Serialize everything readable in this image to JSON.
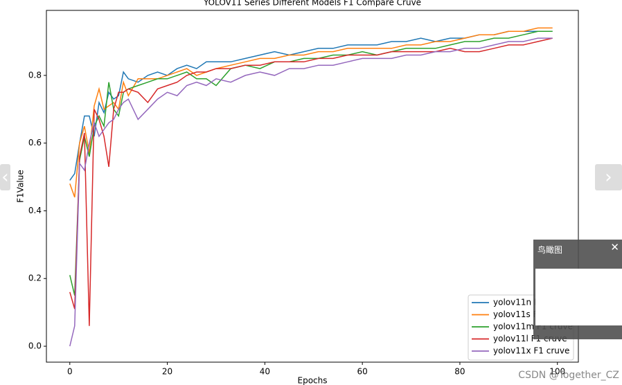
{
  "chart_data": {
    "type": "line",
    "title": "YOLOV11 Series Different Models F1 Compare Cruve",
    "xlabel": "Epochs",
    "ylabel": "F1Value",
    "x": [
      0,
      1,
      2,
      3,
      4,
      5,
      6,
      7,
      8,
      9,
      10,
      11,
      12,
      14,
      16,
      18,
      20,
      22,
      24,
      26,
      28,
      30,
      33,
      36,
      39,
      42,
      45,
      48,
      51,
      54,
      57,
      60,
      63,
      66,
      69,
      72,
      75,
      78,
      81,
      84,
      87,
      90,
      93,
      96,
      99
    ],
    "series": [
      {
        "name": "yolov11n F1 cruve",
        "color": "#1f77b4",
        "values": [
          0.49,
          0.51,
          0.6,
          0.68,
          0.68,
          0.62,
          0.72,
          0.69,
          0.75,
          0.73,
          0.74,
          0.81,
          0.79,
          0.78,
          0.8,
          0.81,
          0.8,
          0.82,
          0.83,
          0.82,
          0.84,
          0.84,
          0.84,
          0.85,
          0.86,
          0.87,
          0.86,
          0.87,
          0.88,
          0.88,
          0.89,
          0.89,
          0.89,
          0.9,
          0.9,
          0.91,
          0.9,
          0.91,
          0.91,
          0.92,
          0.92,
          0.93,
          0.93,
          0.93,
          0.93
        ]
      },
      {
        "name": "yolov11s F1 cruve",
        "color": "#ff7f0e",
        "values": [
          0.48,
          0.44,
          0.6,
          0.65,
          0.57,
          0.71,
          0.76,
          0.7,
          0.71,
          0.72,
          0.7,
          0.78,
          0.74,
          0.79,
          0.79,
          0.79,
          0.8,
          0.81,
          0.82,
          0.8,
          0.81,
          0.82,
          0.83,
          0.84,
          0.85,
          0.85,
          0.86,
          0.86,
          0.87,
          0.87,
          0.88,
          0.88,
          0.88,
          0.88,
          0.89,
          0.89,
          0.9,
          0.9,
          0.91,
          0.92,
          0.92,
          0.93,
          0.93,
          0.94,
          0.94
        ]
      },
      {
        "name": "yolov11m F1 cruve",
        "color": "#2ca02c",
        "values": [
          0.21,
          0.15,
          0.55,
          0.62,
          0.56,
          0.65,
          0.68,
          0.65,
          0.78,
          0.7,
          0.68,
          0.75,
          0.76,
          0.77,
          0.78,
          0.79,
          0.79,
          0.8,
          0.81,
          0.79,
          0.79,
          0.77,
          0.82,
          0.83,
          0.82,
          0.84,
          0.84,
          0.85,
          0.85,
          0.86,
          0.86,
          0.87,
          0.86,
          0.87,
          0.88,
          0.88,
          0.88,
          0.89,
          0.9,
          0.9,
          0.91,
          0.91,
          0.92,
          0.93,
          0.93
        ]
      },
      {
        "name": "yolov11l F1 cruve",
        "color": "#d62728",
        "values": [
          0.16,
          0.11,
          0.56,
          0.63,
          0.06,
          0.7,
          0.67,
          0.62,
          0.53,
          0.7,
          0.75,
          0.75,
          0.76,
          0.75,
          0.72,
          0.76,
          0.77,
          0.78,
          0.8,
          0.81,
          0.81,
          0.82,
          0.82,
          0.83,
          0.83,
          0.84,
          0.84,
          0.84,
          0.85,
          0.85,
          0.86,
          0.86,
          0.86,
          0.87,
          0.87,
          0.87,
          0.87,
          0.88,
          0.87,
          0.87,
          0.88,
          0.89,
          0.89,
          0.9,
          0.91
        ]
      },
      {
        "name": "yolov11x F1 cruve",
        "color": "#9467bd",
        "values": [
          0.0,
          0.06,
          0.54,
          0.52,
          0.6,
          0.66,
          0.62,
          0.64,
          0.66,
          0.67,
          0.7,
          0.72,
          0.73,
          0.67,
          0.7,
          0.73,
          0.75,
          0.74,
          0.77,
          0.78,
          0.77,
          0.79,
          0.78,
          0.8,
          0.81,
          0.8,
          0.82,
          0.82,
          0.83,
          0.83,
          0.84,
          0.85,
          0.85,
          0.85,
          0.86,
          0.86,
          0.87,
          0.87,
          0.88,
          0.88,
          0.89,
          0.9,
          0.9,
          0.91,
          0.91
        ]
      }
    ],
    "xlim": [
      -4.8,
      104.3
    ],
    "ylim": [
      -0.047,
      0.992
    ],
    "xticks": [
      0,
      20,
      40,
      60,
      80,
      100
    ],
    "yticks": [
      {
        "value": 0,
        "label": "0.0"
      },
      0.2,
      0.4,
      0.6,
      0.8
    ],
    "legend": "lower right"
  },
  "ui": {
    "overview_title": "鸟瞰图",
    "close": "✕",
    "prev": "‹",
    "next": "›",
    "watermark": "CSDN @Together_CZ"
  }
}
